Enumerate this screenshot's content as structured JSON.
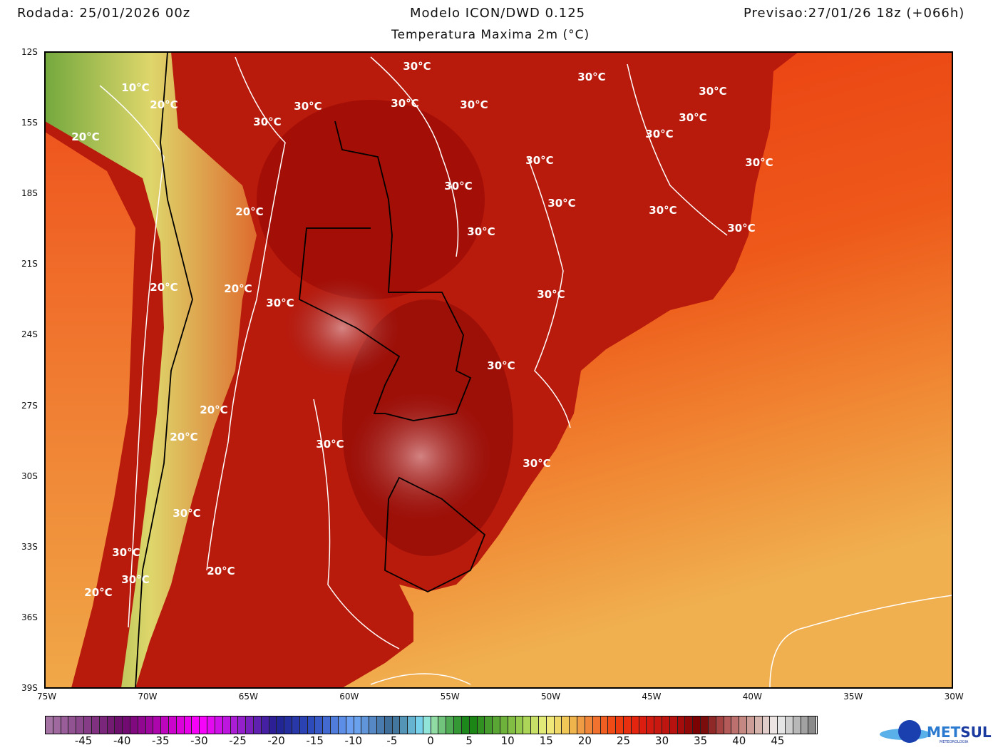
{
  "header": {
    "run": "Rodada: 25/01/2026 00z",
    "model": "Modelo ICON/DWD 0.125",
    "variable": "Temperatura Maxima 2m (°C)",
    "forecast": "Previsao:27/01/26 18z (+066h)"
  },
  "axes": {
    "lat_labels": [
      "12S",
      "15S",
      "18S",
      "21S",
      "24S",
      "27S",
      "30S",
      "33S",
      "36S",
      "39S"
    ],
    "lon_labels": [
      "75W",
      "70W",
      "65W",
      "60W",
      "55W",
      "50W",
      "45W",
      "40W",
      "35W",
      "30W"
    ]
  },
  "contour_labels": [
    "10°C",
    "20°C",
    "20°C",
    "30°C",
    "30°C",
    "30°C",
    "30°C",
    "30°C",
    "30°C",
    "30°C",
    "30°C",
    "30°C",
    "30°C",
    "30°C",
    "30°C",
    "30°C",
    "20°C",
    "20°C",
    "30°C",
    "20°C",
    "20°C",
    "30°C",
    "30°C",
    "30°C",
    "30°C",
    "30°C",
    "30°C",
    "30°C",
    "30°C",
    "20°C",
    "30°C",
    "30°C",
    "20°C",
    "20°C"
  ],
  "colorbar": {
    "min": -50,
    "max": 50,
    "step": 1,
    "labels": [
      "-45",
      "-40",
      "-35",
      "-30",
      "-25",
      "-20",
      "-15",
      "-10",
      "-5",
      "0",
      "5",
      "10",
      "15",
      "20",
      "25",
      "30",
      "35",
      "40",
      "45"
    ],
    "stops": [
      [
        -50,
        "#a87aa8"
      ],
      [
        -40,
        "#6a0a6a"
      ],
      [
        -30,
        "#ff00ff"
      ],
      [
        -25,
        "#a020d0"
      ],
      [
        -20,
        "#202090"
      ],
      [
        -15,
        "#3050c0"
      ],
      [
        -10,
        "#70a8f8"
      ],
      [
        -5,
        "#3a6890"
      ],
      [
        -1,
        "#80e0f8"
      ],
      [
        0,
        "#a0e8b8"
      ],
      [
        3,
        "#40a040"
      ],
      [
        5,
        "#108010"
      ],
      [
        8,
        "#50a030"
      ],
      [
        12,
        "#a0d050"
      ],
      [
        15,
        "#f0f080"
      ],
      [
        18,
        "#f0c050"
      ],
      [
        20,
        "#f09040"
      ],
      [
        24,
        "#f04010"
      ],
      [
        27,
        "#e02010"
      ],
      [
        32,
        "#b01010"
      ],
      [
        35,
        "#700000"
      ],
      [
        38,
        "#b05050"
      ],
      [
        42,
        "#d0a8a0"
      ],
      [
        45,
        "#f0f0f0"
      ],
      [
        50,
        "#808080"
      ]
    ]
  },
  "logo": {
    "name": "METSUL",
    "sub": "METEOROLOGIA"
  }
}
